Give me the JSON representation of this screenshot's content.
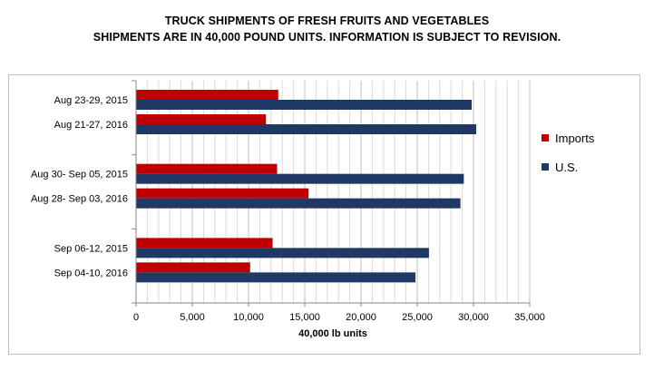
{
  "title_line1": "TRUCK SHIPMENTS OF FRESH FRUITS AND VEGETABLES",
  "title_line2": "SHIPMENTS ARE IN 40,000 POUND UNITS.  INFORMATION IS SUBJECT TO REVISION.",
  "chart_data": {
    "type": "bar",
    "orientation": "horizontal",
    "title": "TRUCK SHIPMENTS OF FRESH FRUITS AND VEGETABLES",
    "subtitle": "SHIPMENTS ARE IN 40,000 POUND UNITS.  INFORMATION IS SUBJECT TO REVISION.",
    "xlabel": "40,000 lb units",
    "ylabel": "",
    "xlim": [
      0,
      35000
    ],
    "xticks": [
      0,
      5000,
      10000,
      15000,
      20000,
      25000,
      30000,
      35000
    ],
    "xtick_labels": [
      "0",
      "5,000",
      "10,000",
      "15,000",
      "20,000",
      "25,000",
      "30,000",
      "35,000"
    ],
    "grid": "vertical",
    "legend_position": "right",
    "categories": [
      "Aug 23-29, 2015",
      "Aug 21-27, 2016",
      "Aug 30- Sep 05, 2015",
      "Aug 28- Sep 03, 2016",
      "Sep 06-12, 2015",
      "Sep 04-10, 2016"
    ],
    "category_groups": [
      [
        0,
        1
      ],
      [
        2,
        3
      ],
      [
        4,
        5
      ]
    ],
    "series": [
      {
        "name": "Imports",
        "color": "#c00000",
        "values": [
          12600,
          11500,
          12500,
          15300,
          12100,
          10100
        ]
      },
      {
        "name": "U.S.",
        "color": "#1f3864",
        "values": [
          29800,
          30200,
          29100,
          28800,
          26000,
          24800
        ]
      }
    ]
  }
}
